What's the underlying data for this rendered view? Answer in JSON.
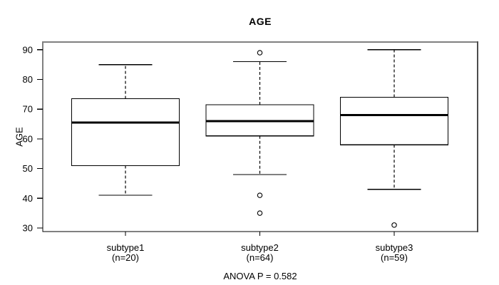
{
  "chart_data": {
    "type": "boxplot",
    "title": "AGE",
    "ylabel": "AGE",
    "xlabel": "",
    "annotation": "ANOVA P = 0.582",
    "ylim": [
      28.8,
      92.6
    ],
    "yticks": [
      30,
      40,
      50,
      60,
      70,
      80,
      90
    ],
    "grid": false,
    "legend": null,
    "groups": [
      {
        "label": "subtype1",
        "sublabel": "(n=20)",
        "whisker_low": 41,
        "q1": 51,
        "median": 65.5,
        "q3": 73.5,
        "whisker_high": 85,
        "outliers": []
      },
      {
        "label": "subtype2",
        "sublabel": "(n=64)",
        "whisker_low": 48,
        "q1": 61,
        "median": 66,
        "q3": 71.5,
        "whisker_high": 86,
        "outliers": [
          89,
          41,
          35
        ]
      },
      {
        "label": "subtype3",
        "sublabel": "(n=59)",
        "whisker_low": 43,
        "q1": 58,
        "median": 68,
        "q3": 74,
        "whisker_high": 90,
        "outliers": [
          31
        ]
      }
    ],
    "colors": {
      "background": "#ffffff",
      "line": "#000000",
      "box_fill": "#ffffff",
      "frame_top": "#808080",
      "frame_right": "#4d4d4d"
    }
  }
}
